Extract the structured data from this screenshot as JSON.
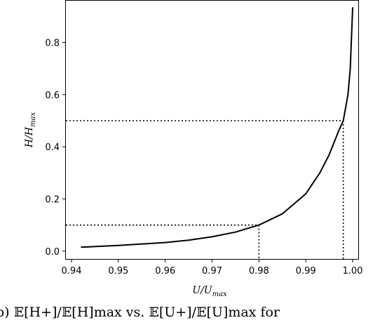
{
  "chart_data": {
    "type": "line",
    "xlabel": {
      "base": "U/U",
      "sub": "max"
    },
    "ylabel": {
      "base": "H/H",
      "sub": "max"
    },
    "xlim": [
      0.9388,
      1.0012
    ],
    "ylim": [
      -0.03,
      0.96
    ],
    "xticks": [
      0.94,
      0.95,
      0.96,
      0.97,
      0.98,
      0.99,
      1.0
    ],
    "xtick_labels": [
      "0.94",
      "0.95",
      "0.96",
      "0.97",
      "0.98",
      "0.99",
      "1.00"
    ],
    "yticks": [
      0.0,
      0.2,
      0.4,
      0.6,
      0.8
    ],
    "ytick_labels": [
      "0.0",
      "0.2",
      "0.4",
      "0.6",
      "0.8"
    ],
    "series": [
      {
        "line_style": "solid",
        "color": "#000000",
        "x": [
          0.942,
          0.95,
          0.96,
          0.965,
          0.97,
          0.975,
          0.98,
          0.985,
          0.99,
          0.993,
          0.995,
          0.997,
          0.998,
          0.999,
          0.9995,
          1.0
        ],
        "y": [
          0.015,
          0.022,
          0.033,
          0.042,
          0.055,
          0.073,
          0.1,
          0.143,
          0.22,
          0.3,
          0.37,
          0.46,
          0.5,
          0.6,
          0.7,
          0.935
        ]
      }
    ],
    "reference_lines": [
      {
        "style": "dotted",
        "x": 0.98,
        "y": 0.1
      },
      {
        "style": "dotted",
        "x": 0.998,
        "y": 0.5
      }
    ],
    "grid": false
  },
  "caption": "b) 𝔼[H+]/𝔼[H]max vs. 𝔼[U+]/𝔼[U]max for"
}
